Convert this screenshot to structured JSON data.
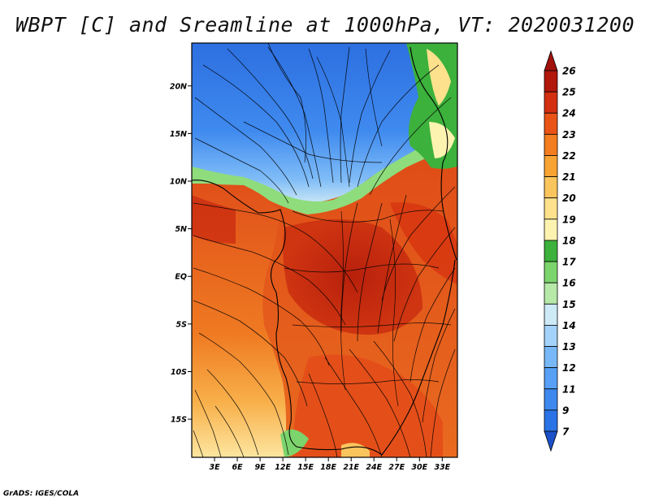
{
  "title": "WBPT [C] and Sreamline at 1000hPa, VT: 2020031200",
  "footer": "GrADS: IGES/COLA",
  "map": {
    "lat_range": [
      -19,
      24.5
    ],
    "lon_range": [
      0,
      35
    ],
    "lat_ticks": [
      {
        "value": 20,
        "label": "20N"
      },
      {
        "value": 15,
        "label": "15N"
      },
      {
        "value": 10,
        "label": "10N"
      },
      {
        "value": 5,
        "label": "5N"
      },
      {
        "value": 0,
        "label": "EQ"
      },
      {
        "value": -5,
        "label": "5S"
      },
      {
        "value": -10,
        "label": "10S"
      },
      {
        "value": -15,
        "label": "15S"
      }
    ],
    "lon_ticks": [
      {
        "value": 3,
        "label": "3E"
      },
      {
        "value": 6,
        "label": "6E"
      },
      {
        "value": 9,
        "label": "9E"
      },
      {
        "value": 12,
        "label": "12E"
      },
      {
        "value": 15,
        "label": "15E"
      },
      {
        "value": 18,
        "label": "18E"
      },
      {
        "value": 21,
        "label": "21E"
      },
      {
        "value": 24,
        "label": "24E"
      },
      {
        "value": 27,
        "label": "27E"
      },
      {
        "value": 30,
        "label": "30E"
      },
      {
        "value": 33,
        "label": "33E"
      }
    ]
  },
  "colorbar": {
    "levels": [
      {
        "label": "7",
        "color": "#1f5fd8"
      },
      {
        "label": "9",
        "color": "#2a73e6"
      },
      {
        "label": "11",
        "color": "#3d88ef"
      },
      {
        "label": "12",
        "color": "#57a0f5"
      },
      {
        "label": "13",
        "color": "#78b8f8"
      },
      {
        "label": "14",
        "color": "#a3d2fa"
      },
      {
        "label": "15",
        "color": "#cdeaf6"
      },
      {
        "label": "16",
        "color": "#b6e8a8"
      },
      {
        "label": "17",
        "color": "#7cd46c"
      },
      {
        "label": "18",
        "color": "#3cb13c"
      },
      {
        "label": "19",
        "color": "#fdf3b0"
      },
      {
        "label": "20",
        "color": "#fde18c"
      },
      {
        "label": "21",
        "color": "#fbc55e"
      },
      {
        "label": "22",
        "color": "#f9a335"
      },
      {
        "label": "23",
        "color": "#f37d1f"
      },
      {
        "label": "24",
        "color": "#e95416"
      },
      {
        "label": "25",
        "color": "#d32f10"
      },
      {
        "label": "26",
        "color": "#b2170c"
      }
    ],
    "below_color": "#1a50c8",
    "above_color": "#a0110b"
  }
}
